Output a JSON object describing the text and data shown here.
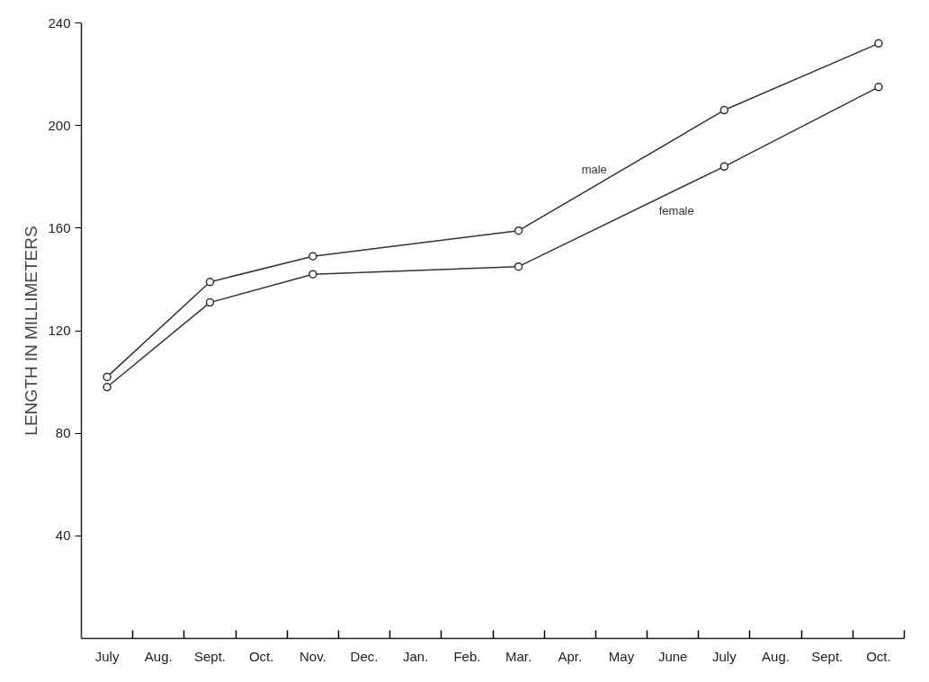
{
  "chart_data": {
    "type": "line",
    "ylabel": "LENGTH IN MILLIMETERS",
    "categories": [
      "July",
      "Aug.",
      "Sept.",
      "Oct.",
      "Nov.",
      "Dec.",
      "Jan.",
      "Feb.",
      "Mar.",
      "Apr.",
      "May",
      "June",
      "July",
      "Aug.",
      "Sept.",
      "Oct."
    ],
    "ylim": [
      0,
      240
    ],
    "yticks": [
      40,
      80,
      120,
      160,
      200,
      240
    ],
    "series": [
      {
        "name": "male",
        "color": "#333333",
        "values": [
          102,
          null,
          139,
          null,
          149,
          null,
          null,
          null,
          159,
          null,
          null,
          null,
          206,
          null,
          null,
          232
        ]
      },
      {
        "name": "female",
        "color": "#333333",
        "values": [
          98,
          null,
          131,
          null,
          142,
          null,
          null,
          null,
          145,
          null,
          null,
          null,
          184,
          null,
          null,
          215
        ]
      }
    ],
    "marker": "circle",
    "line_style": "solid",
    "grid": false
  }
}
